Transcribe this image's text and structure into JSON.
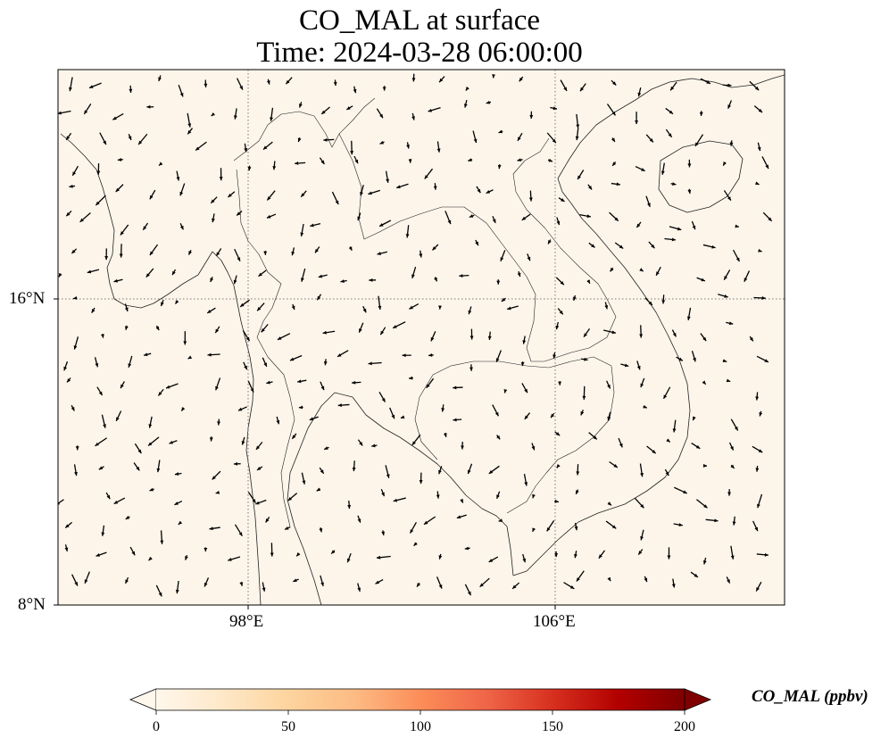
{
  "title": {
    "line1": "CO_MAL at surface",
    "line2": "Time: 2024-03-28 06:00:00"
  },
  "map": {
    "background_color": "#fdf5ea",
    "lat_ticks": [
      "16°N",
      "8°N"
    ],
    "lon_ticks": [
      "98°E",
      "106°E"
    ],
    "gridlines": "dotted",
    "features": [
      "coastlines",
      "country-borders",
      "wind-vectors"
    ]
  },
  "colorbar": {
    "label": "CO_MAL (ppbv)",
    "ticks": [
      "0",
      "50",
      "100",
      "150",
      "200"
    ],
    "min": 0,
    "max": 200,
    "cmap": "OrRd",
    "colors": [
      "#fff7ec",
      "#fee8c8",
      "#fdd49e",
      "#fdbb84",
      "#fc8d59",
      "#ef6548",
      "#d7301f",
      "#b30000",
      "#7f0000"
    ]
  }
}
